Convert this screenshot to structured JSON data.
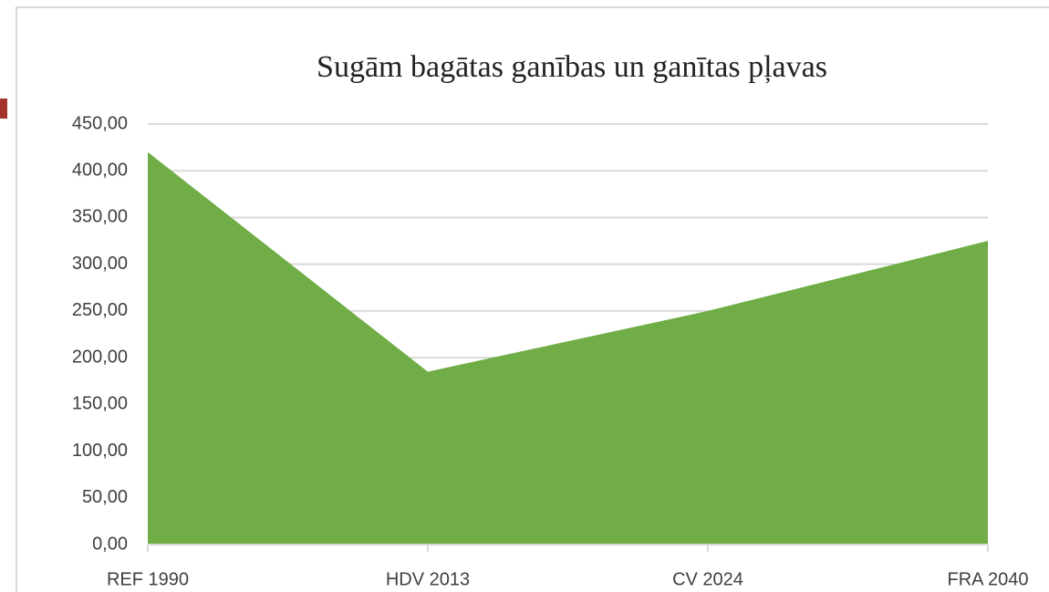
{
  "chart_data": {
    "type": "area",
    "title": "Sugām bagātas ganības un ganītas pļavas",
    "categories": [
      "REF 1990",
      "HDV 2013",
      "CV 2024",
      "FRA 2040"
    ],
    "values": [
      420,
      185,
      250,
      325
    ],
    "color": "#70ad47",
    "ylim": [
      0,
      450
    ],
    "yticks": [
      {
        "value": 0,
        "label": "0,00"
      },
      {
        "value": 50,
        "label": "50,00"
      },
      {
        "value": 100,
        "label": "100,00"
      },
      {
        "value": 150,
        "label": "150,00"
      },
      {
        "value": 200,
        "label": "200,00"
      },
      {
        "value": 250,
        "label": "250,00"
      },
      {
        "value": 300,
        "label": "300,00"
      },
      {
        "value": 350,
        "label": "350,00"
      },
      {
        "value": 400,
        "label": "400,00"
      },
      {
        "value": 450,
        "label": "450,00"
      }
    ],
    "grid": true
  }
}
